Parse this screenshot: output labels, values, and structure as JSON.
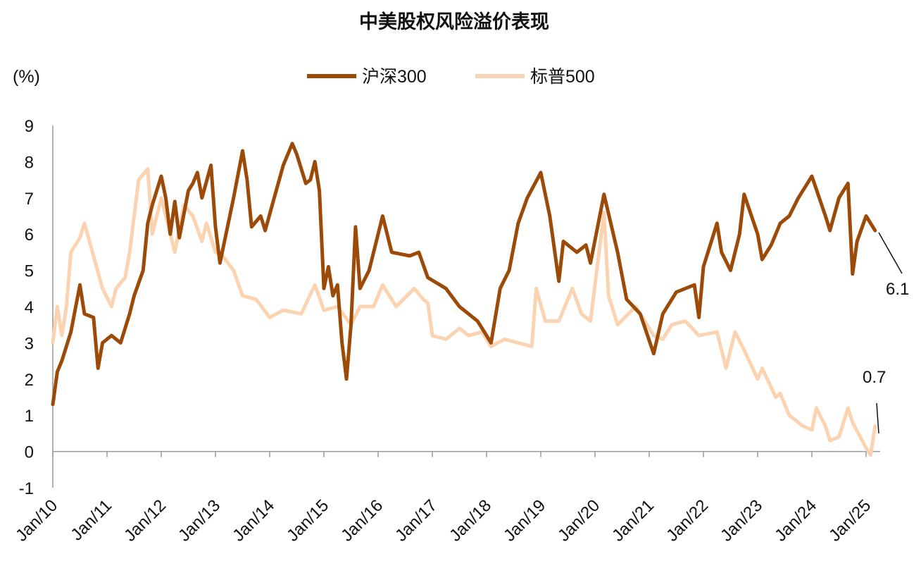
{
  "chart_data": {
    "type": "line",
    "title": "中美股权风险溢价表现",
    "ylabel": "(%)",
    "xlabel": "",
    "ylim": [
      -1,
      9
    ],
    "yticks": [
      "9",
      "8",
      "7",
      "6",
      "5",
      "4",
      "3",
      "2",
      "1",
      "0",
      "-1"
    ],
    "xlim": [
      "2010-01",
      "2025-04"
    ],
    "xticks": [
      "Jan/10",
      "Jan/11",
      "Jan/12",
      "Jan/13",
      "Jan/14",
      "Jan/15",
      "Jan/16",
      "Jan/17",
      "Jan/18",
      "Jan/19",
      "Jan/20",
      "Jan/21",
      "Jan/22",
      "Jan/23",
      "Jan/24",
      "Jan/25"
    ],
    "grid": false,
    "legend": "top-center",
    "series": [
      {
        "name": "沪深300",
        "color": "#9C4A08",
        "end_label": "6.1",
        "points": [
          [
            "2010-01",
            1.3
          ],
          [
            "2010-02",
            2.2
          ],
          [
            "2010-03",
            2.5
          ],
          [
            "2010-05",
            3.3
          ],
          [
            "2010-07",
            4.6
          ],
          [
            "2010-08",
            3.8
          ],
          [
            "2010-10",
            3.7
          ],
          [
            "2010-11",
            2.3
          ],
          [
            "2010-12",
            3.0
          ],
          [
            "2011-02",
            3.2
          ],
          [
            "2011-04",
            3.0
          ],
          [
            "2011-06",
            3.8
          ],
          [
            "2011-07",
            4.3
          ],
          [
            "2011-09",
            5.0
          ],
          [
            "2011-10",
            6.3
          ],
          [
            "2011-11",
            6.8
          ],
          [
            "2012-01",
            7.6
          ],
          [
            "2012-02",
            7.0
          ],
          [
            "2012-03",
            6.0
          ],
          [
            "2012-04",
            6.9
          ],
          [
            "2012-05",
            5.9
          ],
          [
            "2012-07",
            7.2
          ],
          [
            "2012-08",
            7.4
          ],
          [
            "2012-09",
            7.7
          ],
          [
            "2012-10",
            7.0
          ],
          [
            "2012-12",
            7.9
          ],
          [
            "2013-01",
            6.2
          ],
          [
            "2013-02",
            5.2
          ],
          [
            "2013-03",
            5.8
          ],
          [
            "2013-05",
            7.0
          ],
          [
            "2013-07",
            8.3
          ],
          [
            "2013-08",
            7.5
          ],
          [
            "2013-09",
            6.2
          ],
          [
            "2013-11",
            6.5
          ],
          [
            "2013-12",
            6.1
          ],
          [
            "2014-02",
            7.0
          ],
          [
            "2014-04",
            7.9
          ],
          [
            "2014-06",
            8.5
          ],
          [
            "2014-07",
            8.2
          ],
          [
            "2014-09",
            7.4
          ],
          [
            "2014-10",
            7.5
          ],
          [
            "2014-11",
            8.0
          ],
          [
            "2014-12",
            7.2
          ],
          [
            "2015-01",
            4.5
          ],
          [
            "2015-02",
            5.1
          ],
          [
            "2015-03",
            4.3
          ],
          [
            "2015-04",
            4.6
          ],
          [
            "2015-05",
            3.0
          ],
          [
            "2015-06",
            2.0
          ],
          [
            "2015-07",
            3.5
          ],
          [
            "2015-08",
            6.2
          ],
          [
            "2015-09",
            4.5
          ],
          [
            "2015-11",
            5.0
          ],
          [
            "2016-02",
            6.5
          ],
          [
            "2016-04",
            5.5
          ],
          [
            "2016-08",
            5.4
          ],
          [
            "2016-10",
            5.5
          ],
          [
            "2016-12",
            4.8
          ],
          [
            "2017-04",
            4.5
          ],
          [
            "2017-07",
            4.0
          ],
          [
            "2017-11",
            3.6
          ],
          [
            "2018-01",
            3.2
          ],
          [
            "2018-02",
            3.0
          ],
          [
            "2018-04",
            4.5
          ],
          [
            "2018-06",
            5.0
          ],
          [
            "2018-08",
            6.3
          ],
          [
            "2018-10",
            7.0
          ],
          [
            "2019-01",
            7.7
          ],
          [
            "2019-03",
            6.5
          ],
          [
            "2019-05",
            4.7
          ],
          [
            "2019-06",
            5.8
          ],
          [
            "2019-09",
            5.5
          ],
          [
            "2019-11",
            5.7
          ],
          [
            "2019-12",
            5.2
          ],
          [
            "2020-03",
            7.1
          ],
          [
            "2020-06",
            5.5
          ],
          [
            "2020-08",
            4.2
          ],
          [
            "2020-11",
            3.8
          ],
          [
            "2021-02",
            2.7
          ],
          [
            "2021-04",
            3.8
          ],
          [
            "2021-07",
            4.4
          ],
          [
            "2021-11",
            4.6
          ],
          [
            "2021-12",
            3.7
          ],
          [
            "2022-01",
            5.1
          ],
          [
            "2022-04",
            6.3
          ],
          [
            "2022-05",
            5.5
          ],
          [
            "2022-07",
            5.0
          ],
          [
            "2022-09",
            6.0
          ],
          [
            "2022-10",
            7.1
          ],
          [
            "2023-01",
            6.0
          ],
          [
            "2023-02",
            5.3
          ],
          [
            "2023-04",
            5.7
          ],
          [
            "2023-06",
            6.3
          ],
          [
            "2023-08",
            6.5
          ],
          [
            "2023-10",
            7.0
          ],
          [
            "2024-01",
            7.6
          ],
          [
            "2024-04",
            6.5
          ],
          [
            "2024-05",
            6.1
          ],
          [
            "2024-07",
            7.0
          ],
          [
            "2024-09",
            7.4
          ],
          [
            "2024-10",
            4.9
          ],
          [
            "2024-11",
            5.8
          ],
          [
            "2025-01",
            6.5
          ],
          [
            "2025-03",
            6.1
          ]
        ]
      },
      {
        "name": "标普500",
        "color": "#FCD3B0",
        "end_label": "0.7",
        "points": [
          [
            "2010-01",
            3.0
          ],
          [
            "2010-02",
            4.0
          ],
          [
            "2010-03",
            3.2
          ],
          [
            "2010-04",
            4.0
          ],
          [
            "2010-05",
            5.5
          ],
          [
            "2010-07",
            5.9
          ],
          [
            "2010-08",
            6.3
          ],
          [
            "2010-10",
            5.4
          ],
          [
            "2010-12",
            4.5
          ],
          [
            "2011-02",
            4.0
          ],
          [
            "2011-03",
            4.5
          ],
          [
            "2011-05",
            4.8
          ],
          [
            "2011-06",
            5.5
          ],
          [
            "2011-08",
            7.5
          ],
          [
            "2011-10",
            7.8
          ],
          [
            "2011-11",
            6.0
          ],
          [
            "2012-01",
            7.0
          ],
          [
            "2012-03",
            6.0
          ],
          [
            "2012-04",
            5.5
          ],
          [
            "2012-06",
            6.8
          ],
          [
            "2012-08",
            6.5
          ],
          [
            "2012-10",
            5.8
          ],
          [
            "2012-11",
            6.3
          ],
          [
            "2013-01",
            5.5
          ],
          [
            "2013-02",
            5.5
          ],
          [
            "2013-05",
            5.0
          ],
          [
            "2013-07",
            4.3
          ],
          [
            "2013-10",
            4.2
          ],
          [
            "2014-01",
            3.7
          ],
          [
            "2014-04",
            3.9
          ],
          [
            "2014-08",
            3.8
          ],
          [
            "2014-11",
            4.6
          ],
          [
            "2015-01",
            3.9
          ],
          [
            "2015-04",
            4.0
          ],
          [
            "2015-07",
            3.5
          ],
          [
            "2015-09",
            4.0
          ],
          [
            "2015-12",
            4.0
          ],
          [
            "2016-02",
            4.6
          ],
          [
            "2016-05",
            4.0
          ],
          [
            "2016-09",
            4.5
          ],
          [
            "2016-11",
            4.2
          ],
          [
            "2016-12",
            4.1
          ],
          [
            "2017-01",
            3.2
          ],
          [
            "2017-04",
            3.1
          ],
          [
            "2017-07",
            3.4
          ],
          [
            "2017-09",
            3.2
          ],
          [
            "2017-12",
            3.3
          ],
          [
            "2018-02",
            2.9
          ],
          [
            "2018-05",
            3.1
          ],
          [
            "2018-08",
            3.0
          ],
          [
            "2018-11",
            2.9
          ],
          [
            "2018-12",
            4.5
          ],
          [
            "2019-02",
            3.6
          ],
          [
            "2019-05",
            3.6
          ],
          [
            "2019-07",
            4.2
          ],
          [
            "2019-08",
            4.5
          ],
          [
            "2019-10",
            3.8
          ],
          [
            "2019-12",
            3.6
          ],
          [
            "2020-03",
            6.6
          ],
          [
            "2020-04",
            4.3
          ],
          [
            "2020-06",
            3.5
          ],
          [
            "2020-10",
            4.0
          ],
          [
            "2020-12",
            3.6
          ],
          [
            "2021-02",
            3.2
          ],
          [
            "2021-04",
            3.1
          ],
          [
            "2021-06",
            3.5
          ],
          [
            "2021-09",
            3.6
          ],
          [
            "2021-12",
            3.2
          ],
          [
            "2022-04",
            3.3
          ],
          [
            "2022-06",
            2.3
          ],
          [
            "2022-08",
            3.3
          ],
          [
            "2022-10",
            2.8
          ],
          [
            "2023-01",
            2.0
          ],
          [
            "2023-02",
            2.3
          ],
          [
            "2023-05",
            1.5
          ],
          [
            "2023-06",
            1.6
          ],
          [
            "2023-08",
            1.0
          ],
          [
            "2023-11",
            0.7
          ],
          [
            "2024-01",
            0.6
          ],
          [
            "2024-02",
            1.2
          ],
          [
            "2024-04",
            0.7
          ],
          [
            "2024-05",
            0.3
          ],
          [
            "2024-07",
            0.4
          ],
          [
            "2024-09",
            1.2
          ],
          [
            "2024-10",
            0.8
          ],
          [
            "2025-01",
            0.1
          ],
          [
            "2025-02",
            -0.1
          ],
          [
            "2025-03",
            0.7
          ]
        ]
      }
    ]
  }
}
